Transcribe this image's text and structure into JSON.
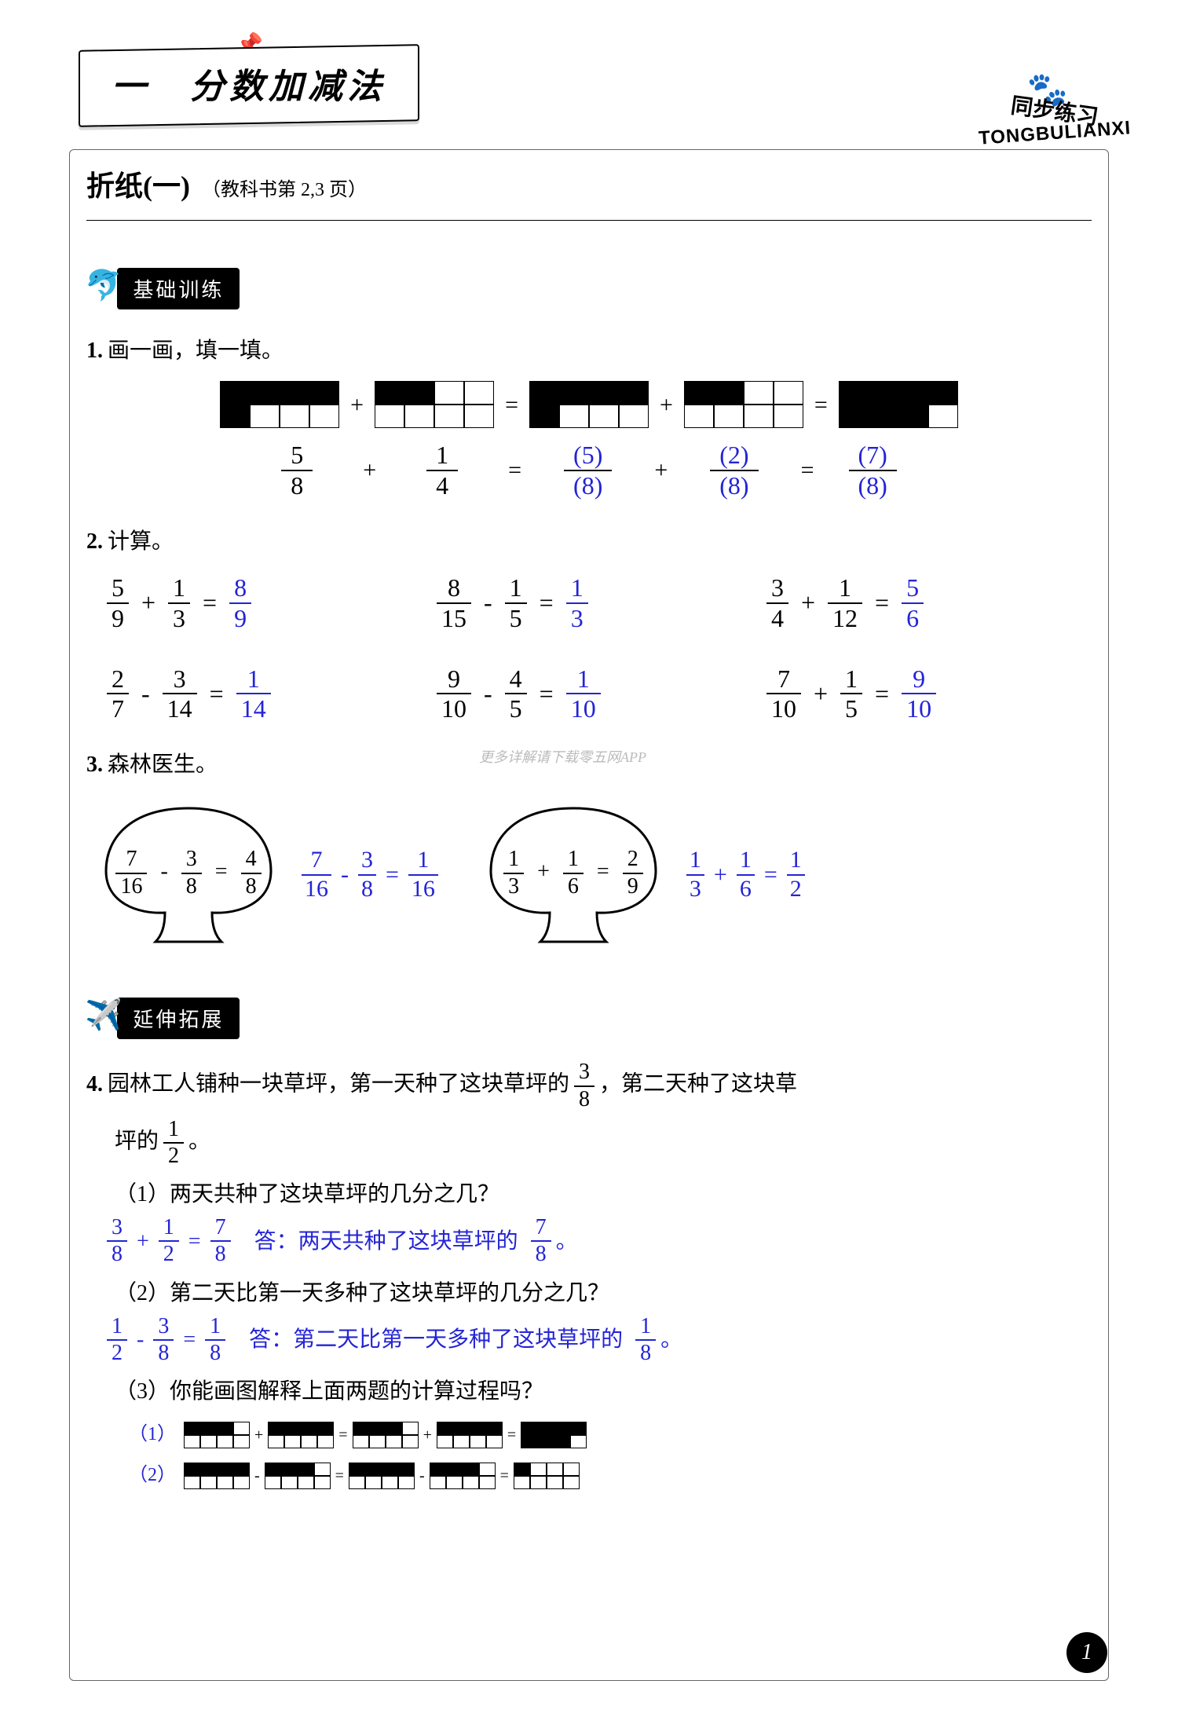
{
  "chapter": {
    "title": "一　分数加减法"
  },
  "brand": {
    "cn": "同步练习",
    "en": "TONGBULIANXI"
  },
  "section": {
    "main": "折纸(一)",
    "sub": "（教科书第 2,3 页）"
  },
  "badge1": "基础训练",
  "badge2": "延伸拓展",
  "q1": {
    "label": "1.",
    "text": "画一画，填一填。",
    "grids": {
      "g1_black": [
        [
          1,
          1,
          1,
          1
        ],
        [
          1,
          0,
          0,
          0
        ]
      ],
      "g2_black": [
        [
          1,
          1,
          0,
          0
        ],
        [
          0,
          0,
          0,
          0
        ]
      ],
      "g3_black": [
        [
          1,
          1,
          1,
          1
        ],
        [
          1,
          0,
          0,
          0
        ]
      ],
      "g4_black": [
        [
          1,
          1,
          0,
          0
        ],
        [
          0,
          0,
          0,
          0
        ]
      ],
      "g5_black": [
        [
          1,
          1,
          1,
          1
        ],
        [
          1,
          1,
          1,
          0
        ]
      ]
    },
    "fracs": {
      "a": {
        "n": "5",
        "d": "8"
      },
      "b": {
        "n": "1",
        "d": "4"
      },
      "c": {
        "n": "5",
        "d": "8"
      },
      "d": {
        "n": "2",
        "d": "8"
      },
      "e": {
        "n": "7",
        "d": "8"
      }
    },
    "ops": {
      "plus": "+",
      "eq": "="
    }
  },
  "q2": {
    "label": "2.",
    "text": "计算。",
    "items": [
      {
        "a": {
          "n": "5",
          "d": "9"
        },
        "op": "+",
        "b": {
          "n": "1",
          "d": "3"
        },
        "ans": {
          "n": "8",
          "d": "9"
        }
      },
      {
        "a": {
          "n": "8",
          "d": "15"
        },
        "op": "-",
        "b": {
          "n": "1",
          "d": "5"
        },
        "ans": {
          "n": "1",
          "d": "3"
        }
      },
      {
        "a": {
          "n": "3",
          "d": "4"
        },
        "op": "+",
        "b": {
          "n": "1",
          "d": "12"
        },
        "ans": {
          "n": "5",
          "d": "6"
        }
      },
      {
        "a": {
          "n": "2",
          "d": "7"
        },
        "op": "-",
        "b": {
          "n": "3",
          "d": "14"
        },
        "ans": {
          "n": "1",
          "d": "14"
        }
      },
      {
        "a": {
          "n": "9",
          "d": "10"
        },
        "op": "-",
        "b": {
          "n": "4",
          "d": "5"
        },
        "ans": {
          "n": "1",
          "d": "10"
        }
      },
      {
        "a": {
          "n": "7",
          "d": "10"
        },
        "op": "+",
        "b": {
          "n": "1",
          "d": "5"
        },
        "ans": {
          "n": "9",
          "d": "10"
        }
      }
    ]
  },
  "q3": {
    "label": "3.",
    "text": "森林医生。",
    "tree1": {
      "a": {
        "n": "7",
        "d": "16"
      },
      "op": "-",
      "b": {
        "n": "3",
        "d": "8"
      },
      "wrong": {
        "n": "4",
        "d": "8"
      },
      "fix_a": {
        "n": "7",
        "d": "16"
      },
      "fix_b": {
        "n": "3",
        "d": "8"
      },
      "ans": {
        "n": "1",
        "d": "16"
      }
    },
    "tree2": {
      "a": {
        "n": "1",
        "d": "3"
      },
      "op": "+",
      "b": {
        "n": "1",
        "d": "6"
      },
      "wrong": {
        "n": "2",
        "d": "9"
      },
      "fix_a": {
        "n": "1",
        "d": "3"
      },
      "fix_b": {
        "n": "1",
        "d": "6"
      },
      "ans": {
        "n": "1",
        "d": "2"
      }
    }
  },
  "q4": {
    "label": "4.",
    "intro_a": "园林工人铺种一块草坪，第一天种了这块草坪的",
    "intro_frac1": {
      "n": "3",
      "d": "8"
    },
    "intro_b": "，第二天种了这块草",
    "intro_c": "坪的",
    "intro_frac2": {
      "n": "1",
      "d": "2"
    },
    "intro_d": "。",
    "sub1": {
      "q": "（1）两天共种了这块草坪的几分之几？",
      "a": {
        "n": "3",
        "d": "8"
      },
      "op": "+",
      "b": {
        "n": "1",
        "d": "2"
      },
      "ans": {
        "n": "7",
        "d": "8"
      },
      "ans_text_a": "答：两天共种了这块草坪的",
      "ans_text_b": "。"
    },
    "sub2": {
      "q": "（2）第二天比第一天多种了这块草坪的几分之几？",
      "a": {
        "n": "1",
        "d": "2"
      },
      "op": "-",
      "b": {
        "n": "3",
        "d": "8"
      },
      "ans": {
        "n": "1",
        "d": "8"
      },
      "ans_text_a": "答：第二天比第一天多种了这块草坪的",
      "ans_text_b": "。"
    },
    "sub3": {
      "q": "（3）你能画图解释上面两题的计算过程吗？",
      "d1_label": "（1）",
      "d2_label": "（2）",
      "d1": {
        "g1": [
          [
            1,
            1,
            1,
            0
          ],
          [
            0,
            0,
            0,
            0
          ]
        ],
        "g2": [
          [
            1,
            1,
            1,
            1
          ],
          [
            0,
            0,
            0,
            0
          ]
        ],
        "g3": [
          [
            1,
            1,
            1,
            0
          ],
          [
            0,
            0,
            0,
            0
          ]
        ],
        "g4": [
          [
            1,
            1,
            1,
            1
          ],
          [
            0,
            0,
            0,
            0
          ]
        ],
        "g5": [
          [
            1,
            1,
            1,
            1
          ],
          [
            1,
            1,
            1,
            0
          ]
        ],
        "ops": [
          "+",
          "=",
          "+",
          "="
        ]
      },
      "d2": {
        "g1": [
          [
            1,
            1,
            1,
            1
          ],
          [
            0,
            0,
            0,
            0
          ]
        ],
        "g2": [
          [
            1,
            1,
            1,
            0
          ],
          [
            0,
            0,
            0,
            0
          ]
        ],
        "g3": [
          [
            1,
            1,
            1,
            1
          ],
          [
            0,
            0,
            0,
            0
          ]
        ],
        "g4": [
          [
            1,
            1,
            1,
            0
          ],
          [
            0,
            0,
            0,
            0
          ]
        ],
        "g5": [
          [
            1,
            0,
            0,
            0
          ],
          [
            0,
            0,
            0,
            0
          ]
        ],
        "ops": [
          "-",
          "=",
          "-",
          "="
        ]
      }
    }
  },
  "page_number": "1",
  "watermark": "更多详解请下载零五网APP",
  "colors": {
    "answer_blue": "#2424d6",
    "black": "#000000",
    "bg": "#ffffff"
  }
}
